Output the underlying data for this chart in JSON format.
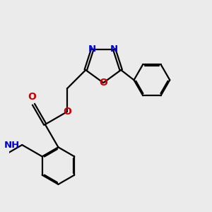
{
  "background_color": "#ebebeb",
  "bond_color": "#000000",
  "N_color": "#0000cc",
  "O_color": "#cc0000",
  "line_width": 1.6,
  "dbo": 0.045,
  "font_size": 9.5,
  "fig_width": 3.0,
  "fig_height": 3.0,
  "dpi": 100,
  "xlim": [
    0.0,
    6.5
  ],
  "ylim": [
    -0.5,
    5.5
  ]
}
